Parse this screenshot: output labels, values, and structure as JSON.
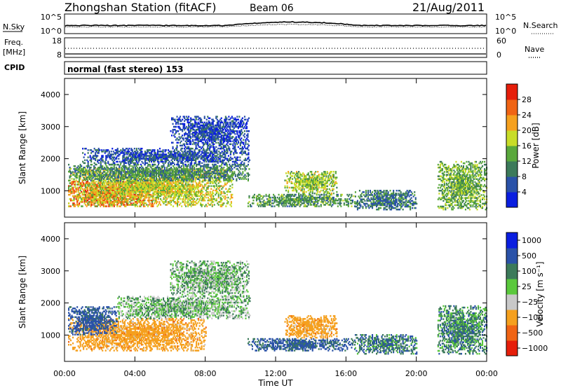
{
  "header": {
    "title": "Zhongshan Station (fitACF)",
    "beam": "Beam 06",
    "date": "21/Aug/2011"
  },
  "nsky_panel": {
    "left_label": "N.Sky",
    "right_label": "N.Search",
    "left_ticks": [
      "10^5",
      "10^0"
    ],
    "right_ticks": [
      "10^5",
      "10^0"
    ]
  },
  "freq_panel": {
    "left_label_1": "Freq.",
    "left_label_2": "[MHz]",
    "right_label": "Nave",
    "left_ticks": [
      "18",
      "8"
    ],
    "right_ticks": [
      "60",
      "0"
    ]
  },
  "cpid": {
    "label": "CPID",
    "mode_text": "normal (fast stereo) 153"
  },
  "colors": {
    "power_scale": [
      "#0a1ee0",
      "#2a52a8",
      "#3c7a5a",
      "#5aa83c",
      "#c8dc28",
      "#f5a01e",
      "#f06414",
      "#e61e0a"
    ],
    "velocity_scale": [
      "#e61e0a",
      "#f06414",
      "#f5a01e",
      "#c8c8c8",
      "#5ac83c",
      "#3c7a5a",
      "#2a52a8",
      "#0a1ee0"
    ]
  },
  "chart_data": [
    {
      "type": "heatmap",
      "panel": "power",
      "ylabel": "Slant Range [km]",
      "xlabel": "",
      "x_ticks": [
        "00:00",
        "04:00",
        "08:00",
        "12:00",
        "16:00",
        "20:00",
        "00:00"
      ],
      "y_ticks": [
        "1000",
        "2000",
        "3000",
        "4000"
      ],
      "ylim": [
        180,
        4500
      ],
      "xlim": [
        0,
        24
      ],
      "colorbar_label": "Power [dB]",
      "colorbar_ticks": [
        "4",
        "8",
        "12",
        "16",
        "20",
        "24",
        "28"
      ],
      "colorbar_range": [
        0,
        32
      ],
      "regions": [
        {
          "x": [
            0.2,
            5.0
          ],
          "y": [
            500,
            1300
          ],
          "value": 27
        },
        {
          "x": [
            0.2,
            9.5
          ],
          "y": [
            500,
            1700
          ],
          "value": 18
        },
        {
          "x": [
            0.2,
            10.5
          ],
          "y": [
            1300,
            1800
          ],
          "value": 11
        },
        {
          "x": [
            1.0,
            10.5
          ],
          "y": [
            1800,
            2300
          ],
          "value": 6
        },
        {
          "x": [
            6.0,
            10.5
          ],
          "y": [
            2300,
            3300
          ],
          "value": 5
        },
        {
          "x": [
            10.4,
            16.5
          ],
          "y": [
            500,
            900
          ],
          "value": 12
        },
        {
          "x": [
            12.5,
            15.5
          ],
          "y": [
            900,
            1600
          ],
          "value": 16
        },
        {
          "x": [
            16.5,
            20.0
          ],
          "y": [
            400,
            1000
          ],
          "value": 9
        },
        {
          "x": [
            21.2,
            24.0
          ],
          "y": [
            400,
            1900
          ],
          "value": 14
        }
      ]
    },
    {
      "type": "heatmap",
      "panel": "velocity",
      "ylabel": "Slant Range [km]",
      "xlabel": "Time UT",
      "x_ticks": [
        "00:00",
        "04:00",
        "08:00",
        "12:00",
        "16:00",
        "20:00",
        "00:00"
      ],
      "y_ticks": [
        "1000",
        "2000",
        "3000",
        "4000"
      ],
      "ylim": [
        180,
        4500
      ],
      "xlim": [
        0,
        24
      ],
      "colorbar_label": "Velocity [m s⁻¹]",
      "colorbar_ticks": [
        "1000",
        "500",
        "100",
        "25",
        "−25",
        "−100",
        "−500",
        "−1000"
      ],
      "regions": [
        {
          "x": [
            0.2,
            8.0
          ],
          "y": [
            500,
            1500
          ],
          "value": -300
        },
        {
          "x": [
            0.2,
            3.0
          ],
          "y": [
            1000,
            1900
          ],
          "value": 200
        },
        {
          "x": [
            3.0,
            10.5
          ],
          "y": [
            1500,
            2200
          ],
          "value": 0
        },
        {
          "x": [
            6.0,
            10.5
          ],
          "y": [
            2200,
            3300
          ],
          "value": 0
        },
        {
          "x": [
            10.4,
            16.5
          ],
          "y": [
            500,
            900
          ],
          "value": 150
        },
        {
          "x": [
            12.5,
            15.5
          ],
          "y": [
            900,
            1600
          ],
          "value": -300
        },
        {
          "x": [
            16.5,
            20.0
          ],
          "y": [
            400,
            1000
          ],
          "value": 80
        },
        {
          "x": [
            21.2,
            24.0
          ],
          "y": [
            400,
            1900
          ],
          "value": 60
        }
      ]
    }
  ]
}
